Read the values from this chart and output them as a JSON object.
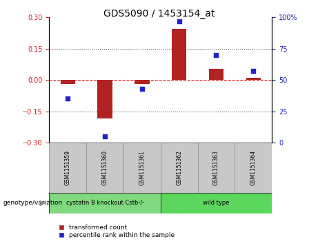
{
  "title": "GDS5090 / 1453154_at",
  "samples": [
    "GSM1151359",
    "GSM1151360",
    "GSM1151361",
    "GSM1151362",
    "GSM1151363",
    "GSM1151364"
  ],
  "transformed_count": [
    -0.02,
    -0.185,
    -0.02,
    0.245,
    0.055,
    0.01
  ],
  "percentile_rank": [
    35,
    5,
    43,
    97,
    70,
    57
  ],
  "groups": [
    {
      "label": "cystatin B knockout Cstb-/-",
      "samples": [
        0,
        1,
        2
      ],
      "color": "#7FD97F"
    },
    {
      "label": "wild type",
      "samples": [
        3,
        4,
        5
      ],
      "color": "#5CD65C"
    }
  ],
  "ylim_left": [
    -0.3,
    0.3
  ],
  "ylim_right": [
    0,
    100
  ],
  "yticks_left": [
    -0.3,
    -0.15,
    0,
    0.15,
    0.3
  ],
  "yticks_right": [
    0,
    25,
    50,
    75,
    100
  ],
  "bar_color": "#B22222",
  "dot_color": "#2222CC",
  "zero_line_color": "#DD2222",
  "dotted_line_color": "#555555",
  "background_color": "#ffffff",
  "plot_bg_color": "#ffffff",
  "legend_label_bar": "transformed count",
  "legend_label_dot": "percentile rank within the sample",
  "genotype_label": "genotype/variation",
  "sample_box_color": "#C8C8C8",
  "left_tick_color": "#CC2222",
  "right_tick_color": "#2222BB"
}
